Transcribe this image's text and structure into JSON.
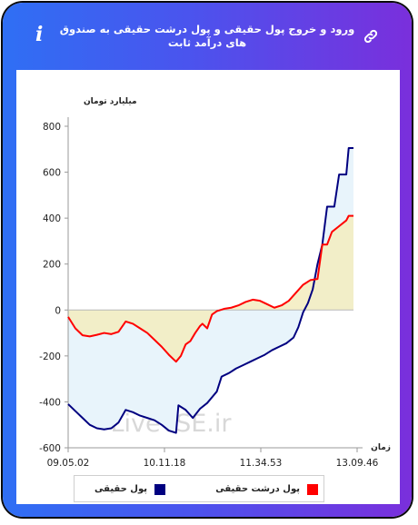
{
  "header": {
    "title": "ورود و خروج پول حقیقی و پول درشت حقیقی به صندوق های درآمد ثابت",
    "info_icon": "info-icon",
    "link_icon": "link-icon"
  },
  "colors": {
    "real_money": "#000080",
    "large_real_money": "#ff0000",
    "real_fill": "#e8f4fb",
    "large_fill": "#f3ecbe"
  },
  "chart_data": {
    "type": "line",
    "ylabel": "میلیارد تومان",
    "xlabel": "زمان",
    "ylim": [
      -600,
      800
    ],
    "yticks": [
      800,
      600,
      400,
      200,
      0,
      -200,
      -400,
      -600
    ],
    "x_categories": [
      "09.05.02",
      "10.11.18",
      "11.34.53",
      "13.09.46"
    ],
    "grid": false,
    "legend_position": "bottom",
    "watermark": "LiveTSE.ir",
    "series": [
      {
        "name": "پول حقیقی",
        "color": "#000080",
        "points": [
          [
            0,
            -410
          ],
          [
            3,
            -440
          ],
          [
            6,
            -470
          ],
          [
            9,
            -500
          ],
          [
            12,
            -515
          ],
          [
            15,
            -520
          ],
          [
            18,
            -515
          ],
          [
            21,
            -490
          ],
          [
            24,
            -435
          ],
          [
            27,
            -445
          ],
          [
            30,
            -460
          ],
          [
            33,
            -470
          ],
          [
            36,
            -480
          ],
          [
            39,
            -500
          ],
          [
            42,
            -525
          ],
          [
            45,
            -535
          ],
          [
            46,
            -415
          ],
          [
            49,
            -435
          ],
          [
            52,
            -470
          ],
          [
            55,
            -430
          ],
          [
            58,
            -405
          ],
          [
            60,
            -380
          ],
          [
            62,
            -355
          ],
          [
            64,
            -290
          ],
          [
            67,
            -275
          ],
          [
            70,
            -255
          ],
          [
            73,
            -240
          ],
          [
            76,
            -225
          ],
          [
            79,
            -210
          ],
          [
            82,
            -195
          ],
          [
            85,
            -175
          ],
          [
            88,
            -160
          ],
          [
            91,
            -145
          ],
          [
            94,
            -120
          ],
          [
            96,
            -75
          ],
          [
            98,
            -10
          ],
          [
            100,
            30
          ],
          [
            102,
            90
          ],
          [
            104,
            200
          ],
          [
            106,
            285
          ],
          [
            108,
            450
          ],
          [
            111,
            450
          ],
          [
            113,
            590
          ],
          [
            116,
            590
          ],
          [
            117,
            705
          ],
          [
            119,
            705
          ]
        ]
      },
      {
        "name": "پول درشت حقیقی",
        "color": "#ff0000",
        "points": [
          [
            0,
            -30
          ],
          [
            3,
            -80
          ],
          [
            6,
            -110
          ],
          [
            9,
            -115
          ],
          [
            12,
            -108
          ],
          [
            15,
            -100
          ],
          [
            18,
            -105
          ],
          [
            21,
            -95
          ],
          [
            24,
            -50
          ],
          [
            27,
            -60
          ],
          [
            30,
            -80
          ],
          [
            33,
            -100
          ],
          [
            36,
            -130
          ],
          [
            39,
            -160
          ],
          [
            42,
            -195
          ],
          [
            45,
            -225
          ],
          [
            47,
            -200
          ],
          [
            49,
            -150
          ],
          [
            51,
            -135
          ],
          [
            53,
            -100
          ],
          [
            55,
            -70
          ],
          [
            56,
            -60
          ],
          [
            58,
            -80
          ],
          [
            60,
            -20
          ],
          [
            62,
            -5
          ],
          [
            65,
            5
          ],
          [
            68,
            10
          ],
          [
            71,
            20
          ],
          [
            74,
            35
          ],
          [
            77,
            45
          ],
          [
            80,
            40
          ],
          [
            83,
            25
          ],
          [
            86,
            10
          ],
          [
            89,
            20
          ],
          [
            92,
            40
          ],
          [
            95,
            75
          ],
          [
            98,
            110
          ],
          [
            101,
            130
          ],
          [
            104,
            135
          ],
          [
            106,
            285
          ],
          [
            108,
            285
          ],
          [
            110,
            340
          ],
          [
            113,
            365
          ],
          [
            116,
            390
          ],
          [
            117,
            410
          ],
          [
            119,
            410
          ]
        ]
      }
    ]
  }
}
